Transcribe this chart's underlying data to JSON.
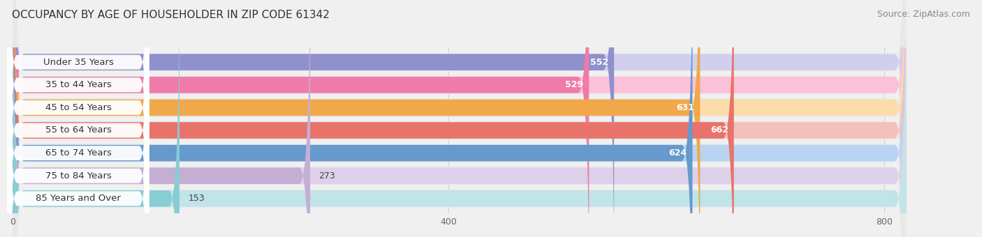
{
  "title": "OCCUPANCY BY AGE OF HOUSEHOLDER IN ZIP CODE 61342",
  "source": "Source: ZipAtlas.com",
  "categories": [
    "Under 35 Years",
    "35 to 44 Years",
    "45 to 54 Years",
    "55 to 64 Years",
    "65 to 74 Years",
    "75 to 84 Years",
    "85 Years and Over"
  ],
  "values": [
    552,
    529,
    631,
    662,
    624,
    273,
    153
  ],
  "bar_colors": [
    "#9090cc",
    "#f07aaa",
    "#f0a84a",
    "#e8736a",
    "#6699cc",
    "#c4aed4",
    "#88ccd4"
  ],
  "bar_colors_light": [
    "#d0d0ee",
    "#fcc0d8",
    "#fcdcaa",
    "#f4c0bc",
    "#b8d4f0",
    "#ddd0ea",
    "#c0e4e8"
  ],
  "xlim_min": -10,
  "xlim_max": 870,
  "bar_max": 820,
  "xticks": [
    0,
    400,
    800
  ],
  "background_color": "#f0f0f0",
  "row_bg_color": "#e8e8e8",
  "title_fontsize": 11,
  "source_fontsize": 9,
  "label_fontsize": 9.5,
  "value_fontsize": 9
}
